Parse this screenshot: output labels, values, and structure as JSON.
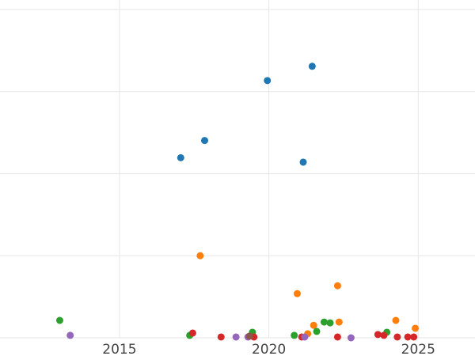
{
  "chart_data": {
    "type": "scatter",
    "title": "",
    "xlabel": "",
    "ylabel": "",
    "xlim": [
      2011.0,
      2026.9
    ],
    "ylim": [
      0,
      2000
    ],
    "x_ticks": [
      2015,
      2020,
      2025
    ],
    "y_gridlines": [
      0,
      500,
      1000,
      1500,
      2000
    ],
    "x_gridlines": [
      2015,
      2020,
      2025
    ],
    "grid": true,
    "legend": "none",
    "series": [
      {
        "color": "#1f77b4",
        "points": [
          {
            "x": 2017.05,
            "y": 1097
          },
          {
            "x": 2017.85,
            "y": 1202
          },
          {
            "x": 2019.95,
            "y": 1567
          },
          {
            "x": 2021.15,
            "y": 1070
          },
          {
            "x": 2021.45,
            "y": 1654
          }
        ]
      },
      {
        "color": "#ff7f0e",
        "points": [
          {
            "x": 2017.7,
            "y": 500
          },
          {
            "x": 2020.95,
            "y": 269
          },
          {
            "x": 2021.3,
            "y": 25
          },
          {
            "x": 2021.5,
            "y": 76
          },
          {
            "x": 2022.3,
            "y": 317
          },
          {
            "x": 2022.35,
            "y": 96
          },
          {
            "x": 2024.25,
            "y": 106
          },
          {
            "x": 2024.9,
            "y": 58
          }
        ]
      },
      {
        "color": "#2ca02c",
        "points": [
          {
            "x": 2013.0,
            "y": 106
          },
          {
            "x": 2017.35,
            "y": 15
          },
          {
            "x": 2019.45,
            "y": 34
          },
          {
            "x": 2020.85,
            "y": 15
          },
          {
            "x": 2021.6,
            "y": 39
          },
          {
            "x": 2021.85,
            "y": 96
          },
          {
            "x": 2022.05,
            "y": 91
          },
          {
            "x": 2023.95,
            "y": 34
          }
        ]
      },
      {
        "color": "#d62728",
        "points": [
          {
            "x": 2017.45,
            "y": 29
          },
          {
            "x": 2018.4,
            "y": 5
          },
          {
            "x": 2019.5,
            "y": 5
          },
          {
            "x": 2021.1,
            "y": 5
          },
          {
            "x": 2022.3,
            "y": 5
          },
          {
            "x": 2023.65,
            "y": 20
          },
          {
            "x": 2023.85,
            "y": 15
          },
          {
            "x": 2024.3,
            "y": 5
          },
          {
            "x": 2024.65,
            "y": 5
          },
          {
            "x": 2024.85,
            "y": 5
          }
        ]
      },
      {
        "color": "#9467bd",
        "points": [
          {
            "x": 2013.35,
            "y": 15
          },
          {
            "x": 2018.9,
            "y": 5
          },
          {
            "x": 2019.3,
            "y": 5
          },
          {
            "x": 2021.2,
            "y": 5
          },
          {
            "x": 2022.75,
            "y": 0
          }
        ]
      },
      {
        "color": "#8c564b",
        "points": [
          {
            "x": 2019.35,
            "y": 10
          }
        ]
      }
    ]
  }
}
